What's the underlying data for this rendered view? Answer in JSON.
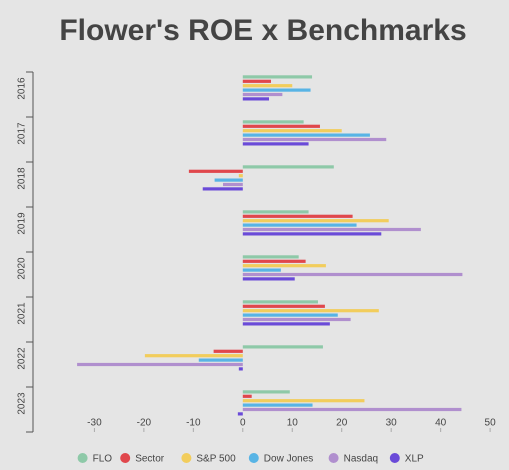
{
  "chart_data": {
    "type": "hbar",
    "title": "Flower's ROE x Benchmarks",
    "categories": [
      "2016",
      "2017",
      "2018",
      "2019",
      "2020",
      "2021",
      "2022",
      "2023"
    ],
    "series": [
      {
        "name": "FLO",
        "color": "#8ec9a8",
        "values": [
          14,
          12.3,
          18.4,
          13.3,
          11.3,
          15.2,
          16.2,
          9.5
        ]
      },
      {
        "name": "Sector",
        "color": "#e0474c",
        "values": [
          5.7,
          15.6,
          -10.9,
          22.2,
          12.7,
          16.6,
          -5.9,
          1.8
        ]
      },
      {
        "name": "S&P 500",
        "color": "#f2cd5c",
        "values": [
          10,
          20,
          -0.8,
          29.5,
          16.8,
          27.5,
          -19.8,
          24.6
        ]
      },
      {
        "name": "Dow Jones",
        "color": "#58b4e5",
        "values": [
          13.7,
          25.7,
          -5.7,
          23,
          7.7,
          19.2,
          -8.9,
          14.1
        ]
      },
      {
        "name": "Nasdaq",
        "color": "#b08fce",
        "values": [
          8,
          29,
          -4,
          36,
          44.4,
          21.8,
          -33.5,
          44.2
        ]
      },
      {
        "name": "XLP",
        "color": "#6a4ad8",
        "values": [
          5.3,
          13.3,
          -8.1,
          28,
          10.5,
          17.6,
          -0.8,
          -1
        ]
      }
    ],
    "xlim": [
      -41,
      52
    ],
    "xticks": [
      -30,
      -20,
      -10,
      0,
      10,
      20,
      30,
      40,
      50
    ]
  }
}
